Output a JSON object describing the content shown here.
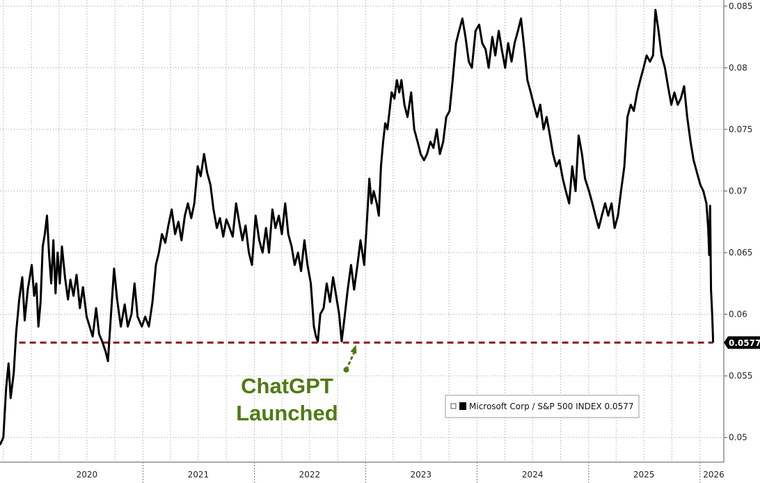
{
  "chart_data": {
    "type": "line",
    "series": [
      {
        "name": "Microsoft Corp / S&P 500 INDEX",
        "color": "#000000",
        "last_value_label": "0.0577",
        "points": [
          [
            "2019-09-20",
            0.0494
          ],
          [
            "2019-10-01",
            0.05
          ],
          [
            "2019-10-10",
            0.054
          ],
          [
            "2019-10-18",
            0.056
          ],
          [
            "2019-10-25",
            0.0532
          ],
          [
            "2019-11-04",
            0.0552
          ],
          [
            "2019-11-12",
            0.0585
          ],
          [
            "2019-11-22",
            0.0612
          ],
          [
            "2019-12-02",
            0.063
          ],
          [
            "2019-12-10",
            0.0595
          ],
          [
            "2019-12-20",
            0.062
          ],
          [
            "2020-01-02",
            0.064
          ],
          [
            "2020-01-10",
            0.0615
          ],
          [
            "2020-01-17",
            0.0625
          ],
          [
            "2020-01-24",
            0.059
          ],
          [
            "2020-01-31",
            0.061
          ],
          [
            "2020-02-07",
            0.0655
          ],
          [
            "2020-02-14",
            0.0665
          ],
          [
            "2020-02-21",
            0.068
          ],
          [
            "2020-02-28",
            0.0648
          ],
          [
            "2020-03-06",
            0.0625
          ],
          [
            "2020-03-13",
            0.066
          ],
          [
            "2020-03-20",
            0.0617
          ],
          [
            "2020-03-27",
            0.065
          ],
          [
            "2020-04-03",
            0.0625
          ],
          [
            "2020-04-10",
            0.0655
          ],
          [
            "2020-04-20",
            0.063
          ],
          [
            "2020-04-30",
            0.0612
          ],
          [
            "2020-05-08",
            0.0628
          ],
          [
            "2020-05-18",
            0.0615
          ],
          [
            "2020-05-28",
            0.0632
          ],
          [
            "2020-06-08",
            0.0605
          ],
          [
            "2020-06-18",
            0.0622
          ],
          [
            "2020-06-30",
            0.0598
          ],
          [
            "2020-07-10",
            0.059
          ],
          [
            "2020-07-20",
            0.0582
          ],
          [
            "2020-07-31",
            0.0605
          ],
          [
            "2020-08-10",
            0.0584
          ],
          [
            "2020-08-20",
            0.0578
          ],
          [
            "2020-08-31",
            0.057
          ],
          [
            "2020-09-08",
            0.0562
          ],
          [
            "2020-09-18",
            0.06
          ],
          [
            "2020-09-28",
            0.0637
          ],
          [
            "2020-10-08",
            0.0612
          ],
          [
            "2020-10-20",
            0.059
          ],
          [
            "2020-11-02",
            0.0608
          ],
          [
            "2020-11-12",
            0.059
          ],
          [
            "2020-11-24",
            0.06
          ],
          [
            "2020-12-04",
            0.0625
          ],
          [
            "2020-12-14",
            0.0598
          ],
          [
            "2020-12-28",
            0.059
          ],
          [
            "2021-01-08",
            0.0598
          ],
          [
            "2021-01-20",
            0.059
          ],
          [
            "2021-02-01",
            0.061
          ],
          [
            "2021-02-12",
            0.064
          ],
          [
            "2021-02-22",
            0.065
          ],
          [
            "2021-03-04",
            0.0665
          ],
          [
            "2021-03-15",
            0.0658
          ],
          [
            "2021-03-25",
            0.0672
          ],
          [
            "2021-04-05",
            0.0685
          ],
          [
            "2021-04-16",
            0.0665
          ],
          [
            "2021-04-27",
            0.0675
          ],
          [
            "2021-05-07",
            0.066
          ],
          [
            "2021-05-18",
            0.068
          ],
          [
            "2021-05-28",
            0.069
          ],
          [
            "2021-06-08",
            0.0678
          ],
          [
            "2021-06-18",
            0.069
          ],
          [
            "2021-06-29",
            0.072
          ],
          [
            "2021-07-09",
            0.0712
          ],
          [
            "2021-07-20",
            0.073
          ],
          [
            "2021-07-30",
            0.0715
          ],
          [
            "2021-08-10",
            0.0705
          ],
          [
            "2021-08-20",
            0.0685
          ],
          [
            "2021-08-31",
            0.067
          ],
          [
            "2021-09-10",
            0.0678
          ],
          [
            "2021-09-21",
            0.0663
          ],
          [
            "2021-10-01",
            0.0677
          ],
          [
            "2021-10-12",
            0.067
          ],
          [
            "2021-10-22",
            0.0663
          ],
          [
            "2021-11-02",
            0.069
          ],
          [
            "2021-11-12",
            0.0675
          ],
          [
            "2021-11-23",
            0.066
          ],
          [
            "2021-12-03",
            0.0672
          ],
          [
            "2021-12-14",
            0.065
          ],
          [
            "2021-12-24",
            0.064
          ],
          [
            "2022-01-05",
            0.068
          ],
          [
            "2022-01-17",
            0.066
          ],
          [
            "2022-01-28",
            0.065
          ],
          [
            "2022-02-08",
            0.067
          ],
          [
            "2022-02-18",
            0.065
          ],
          [
            "2022-03-01",
            0.0685
          ],
          [
            "2022-03-11",
            0.067
          ],
          [
            "2022-03-22",
            0.068
          ],
          [
            "2022-04-01",
            0.0665
          ],
          [
            "2022-04-12",
            0.069
          ],
          [
            "2022-04-22",
            0.0665
          ],
          [
            "2022-05-03",
            0.0655
          ],
          [
            "2022-05-13",
            0.064
          ],
          [
            "2022-05-24",
            0.065
          ],
          [
            "2022-06-03",
            0.0635
          ],
          [
            "2022-06-14",
            0.066
          ],
          [
            "2022-06-24",
            0.064
          ],
          [
            "2022-07-05",
            0.0625
          ],
          [
            "2022-07-15",
            0.059
          ],
          [
            "2022-07-22",
            0.0582
          ],
          [
            "2022-07-28",
            0.0578
          ],
          [
            "2022-08-05",
            0.06
          ],
          [
            "2022-08-16",
            0.0605
          ],
          [
            "2022-08-26",
            0.0625
          ],
          [
            "2022-09-06",
            0.061
          ],
          [
            "2022-09-16",
            0.063
          ],
          [
            "2022-09-26",
            0.0615
          ],
          [
            "2022-10-06",
            0.06
          ],
          [
            "2022-10-14",
            0.0578
          ],
          [
            "2022-10-24",
            0.0598
          ],
          [
            "2022-11-03",
            0.062
          ],
          [
            "2022-11-14",
            0.064
          ],
          [
            "2022-11-24",
            0.062
          ],
          [
            "2022-12-05",
            0.064
          ],
          [
            "2022-12-15",
            0.066
          ],
          [
            "2022-12-27",
            0.064
          ],
          [
            "2023-01-06",
            0.068
          ],
          [
            "2023-01-13",
            0.071
          ],
          [
            "2023-01-20",
            0.069
          ],
          [
            "2023-01-27",
            0.07
          ],
          [
            "2023-02-06",
            0.069
          ],
          [
            "2023-02-13",
            0.068
          ],
          [
            "2023-02-20",
            0.072
          ],
          [
            "2023-02-27",
            0.074
          ],
          [
            "2023-03-06",
            0.0755
          ],
          [
            "2023-03-13",
            0.075
          ],
          [
            "2023-03-20",
            0.0765
          ],
          [
            "2023-03-27",
            0.078
          ],
          [
            "2023-04-05",
            0.0775
          ],
          [
            "2023-04-13",
            0.079
          ],
          [
            "2023-04-21",
            0.078
          ],
          [
            "2023-04-28",
            0.079
          ],
          [
            "2023-05-08",
            0.077
          ],
          [
            "2023-05-18",
            0.076
          ],
          [
            "2023-05-30",
            0.078
          ],
          [
            "2023-06-09",
            0.075
          ],
          [
            "2023-06-20",
            0.074
          ],
          [
            "2023-06-30",
            0.073
          ],
          [
            "2023-07-11",
            0.0725
          ],
          [
            "2023-07-21",
            0.073
          ],
          [
            "2023-08-01",
            0.074
          ],
          [
            "2023-08-11",
            0.0735
          ],
          [
            "2023-08-22",
            0.075
          ],
          [
            "2023-09-01",
            0.073
          ],
          [
            "2023-09-12",
            0.074
          ],
          [
            "2023-09-22",
            0.076
          ],
          [
            "2023-10-03",
            0.0765
          ],
          [
            "2023-10-13",
            0.079
          ],
          [
            "2023-10-24",
            0.082
          ],
          [
            "2023-11-03",
            0.083
          ],
          [
            "2023-11-14",
            0.084
          ],
          [
            "2023-11-24",
            0.0825
          ],
          [
            "2023-12-05",
            0.0805
          ],
          [
            "2023-12-15",
            0.08
          ],
          [
            "2023-12-27",
            0.083
          ],
          [
            "2024-01-08",
            0.0835
          ],
          [
            "2024-01-18",
            0.082
          ],
          [
            "2024-01-29",
            0.0815
          ],
          [
            "2024-02-08",
            0.08
          ],
          [
            "2024-02-20",
            0.0825
          ],
          [
            "2024-03-01",
            0.081
          ],
          [
            "2024-03-12",
            0.083
          ],
          [
            "2024-03-22",
            0.0815
          ],
          [
            "2024-04-02",
            0.08
          ],
          [
            "2024-04-12",
            0.082
          ],
          [
            "2024-04-23",
            0.0805
          ],
          [
            "2024-05-03",
            0.082
          ],
          [
            "2024-05-14",
            0.083
          ],
          [
            "2024-05-24",
            0.084
          ],
          [
            "2024-06-04",
            0.0815
          ],
          [
            "2024-06-14",
            0.079
          ],
          [
            "2024-06-25",
            0.078
          ],
          [
            "2024-07-05",
            0.077
          ],
          [
            "2024-07-16",
            0.076
          ],
          [
            "2024-07-26",
            0.077
          ],
          [
            "2024-08-06",
            0.075
          ],
          [
            "2024-08-16",
            0.076
          ],
          [
            "2024-08-27",
            0.0745
          ],
          [
            "2024-09-06",
            0.073
          ],
          [
            "2024-09-17",
            0.072
          ],
          [
            "2024-09-27",
            0.0725
          ],
          [
            "2024-10-08",
            0.071
          ],
          [
            "2024-10-18",
            0.07
          ],
          [
            "2024-10-29",
            0.069
          ],
          [
            "2024-11-08",
            0.072
          ],
          [
            "2024-11-19",
            0.07
          ],
          [
            "2024-11-29",
            0.0745
          ],
          [
            "2024-12-10",
            0.073
          ],
          [
            "2024-12-20",
            0.071
          ],
          [
            "2025-01-02",
            0.07
          ],
          [
            "2025-01-13",
            0.069
          ],
          [
            "2025-01-23",
            0.068
          ],
          [
            "2025-02-03",
            0.067
          ],
          [
            "2025-02-13",
            0.068
          ],
          [
            "2025-02-24",
            0.069
          ],
          [
            "2025-03-06",
            0.068
          ],
          [
            "2025-03-17",
            0.069
          ],
          [
            "2025-03-27",
            0.067
          ],
          [
            "2025-04-07",
            0.068
          ],
          [
            "2025-04-17",
            0.07
          ],
          [
            "2025-04-28",
            0.072
          ],
          [
            "2025-05-08",
            0.076
          ],
          [
            "2025-05-19",
            0.077
          ],
          [
            "2025-05-29",
            0.0765
          ],
          [
            "2025-06-09",
            0.078
          ],
          [
            "2025-06-19",
            0.079
          ],
          [
            "2025-06-30",
            0.08
          ],
          [
            "2025-07-10",
            0.081
          ],
          [
            "2025-07-21",
            0.0805
          ],
          [
            "2025-07-31",
            0.081
          ],
          [
            "2025-08-08",
            0.0847
          ],
          [
            "2025-08-18",
            0.083
          ],
          [
            "2025-08-28",
            0.081
          ],
          [
            "2025-09-08",
            0.08
          ],
          [
            "2025-09-18",
            0.0785
          ],
          [
            "2025-09-29",
            0.077
          ],
          [
            "2025-10-09",
            0.078
          ],
          [
            "2025-10-20",
            0.077
          ],
          [
            "2025-10-30",
            0.0775
          ],
          [
            "2025-11-10",
            0.0785
          ],
          [
            "2025-11-20",
            0.076
          ],
          [
            "2025-12-01",
            0.074
          ],
          [
            "2025-12-11",
            0.0725
          ],
          [
            "2025-12-22",
            0.0715
          ],
          [
            "2026-01-02",
            0.0705
          ],
          [
            "2026-01-12",
            0.07
          ],
          [
            "2026-01-22",
            0.069
          ],
          [
            "2026-01-28",
            0.067
          ],
          [
            "2026-01-31",
            0.0648
          ],
          [
            "2026-02-03",
            0.0688
          ],
          [
            "2026-02-06",
            0.062
          ],
          [
            "2026-02-10",
            0.06
          ],
          [
            "2026-02-13",
            0.0577
          ]
        ]
      }
    ],
    "x_axis": {
      "type": "date",
      "range": [
        "2019-09-20",
        "2026-03-20"
      ],
      "tick_labels": [
        {
          "label": "2020",
          "at": "2020-07-01"
        },
        {
          "label": "2021",
          "at": "2021-07-01"
        },
        {
          "label": "2022",
          "at": "2022-07-01"
        },
        {
          "label": "2023",
          "at": "2023-07-01"
        },
        {
          "label": "2024",
          "at": "2024-07-01"
        },
        {
          "label": "2025",
          "at": "2025-07-01"
        },
        {
          "label": "2026",
          "at": "2026-02-15"
        }
      ],
      "year_boundaries": [
        "2021-01-01",
        "2022-01-01",
        "2023-01-01",
        "2024-01-01",
        "2025-01-01",
        "2026-01-01"
      ]
    },
    "y_axis": {
      "position": "right",
      "range": [
        0.048,
        0.0855
      ],
      "ticks": [
        0.05,
        0.055,
        0.06,
        0.065,
        0.07,
        0.075,
        0.08,
        0.085
      ],
      "tick_labels": [
        "0.05",
        "0.055",
        "0.06",
        "0.065",
        "0.07",
        "0.075",
        "0.08",
        "0.085"
      ]
    },
    "grid": true,
    "reference_line": {
      "value": 0.0577,
      "style": "dashed",
      "color": "#8b1a1a",
      "from": "2019-11-22",
      "to": "2026-02-13"
    },
    "annotation": {
      "lines": [
        "ChatGPT",
        "Launched"
      ],
      "color": "#4f7a12",
      "arrow_to": "2022-11-30"
    },
    "legend": {
      "placement": "bottom-right",
      "text": "Microsoft Corp / S&P 500 INDEX 0.0577"
    }
  }
}
